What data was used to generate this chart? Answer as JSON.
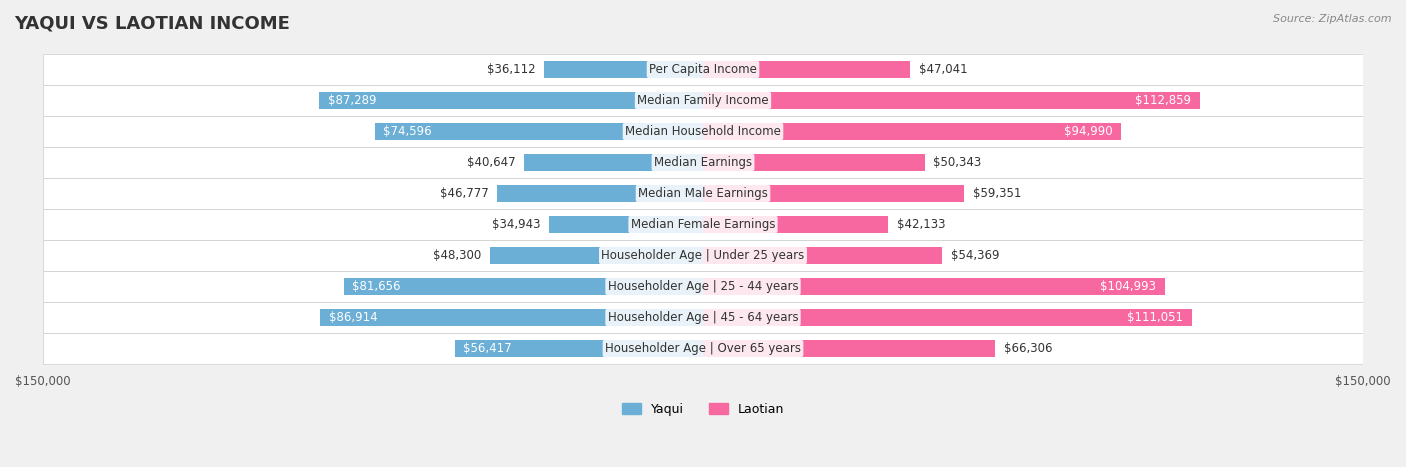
{
  "title": "YAQUI VS LAOTIAN INCOME",
  "source": "Source: ZipAtlas.com",
  "categories": [
    "Per Capita Income",
    "Median Family Income",
    "Median Household Income",
    "Median Earnings",
    "Median Male Earnings",
    "Median Female Earnings",
    "Householder Age | Under 25 years",
    "Householder Age | 25 - 44 years",
    "Householder Age | 45 - 64 years",
    "Householder Age | Over 65 years"
  ],
  "yaqui_values": [
    36112,
    87289,
    74596,
    40647,
    46777,
    34943,
    48300,
    81656,
    86914,
    56417
  ],
  "laotian_values": [
    47041,
    112859,
    94990,
    50343,
    59351,
    42133,
    54369,
    104993,
    111051,
    66306
  ],
  "yaqui_labels": [
    "$36,112",
    "$87,289",
    "$74,596",
    "$40,647",
    "$46,777",
    "$34,943",
    "$48,300",
    "$81,656",
    "$86,914",
    "$56,417"
  ],
  "laotian_labels": [
    "$47,041",
    "$112,859",
    "$94,990",
    "$50,343",
    "$59,351",
    "$42,133",
    "$54,369",
    "$104,993",
    "$111,051",
    "$66,306"
  ],
  "yaqui_color": "#6baed6",
  "laotian_color": "#f768a1",
  "yaqui_color_dark": "#4292c6",
  "laotian_color_dark": "#e8498a",
  "max_value": 150000,
  "bg_color": "#f0f0f0",
  "row_bg_color": "#ffffff",
  "bar_height": 0.55,
  "label_color_threshold": 0.6,
  "title_fontsize": 13,
  "label_fontsize": 8.5,
  "cat_fontsize": 8.5,
  "legend_fontsize": 9,
  "axis_label_fontsize": 8.5
}
